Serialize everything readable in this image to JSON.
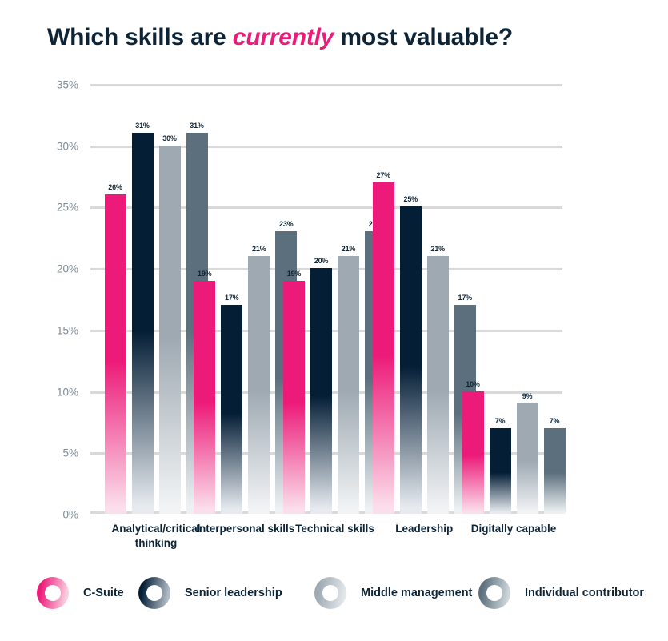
{
  "title": {
    "prefix": "Which skills are ",
    "highlight": "currently",
    "suffix": " most valuable?"
  },
  "colors": {
    "background": "#ffffff",
    "title_text": "#0d2436",
    "highlight_text": "#ec1a78",
    "gridline": "#d9d9d9",
    "tick_label": "#7e8b93",
    "data_label": "#0d2436",
    "category_label": "#0d2436"
  },
  "chart_data": {
    "type": "bar",
    "title": "Which skills are currently most valuable?",
    "xlabel": "",
    "ylabel": "",
    "ylim": [
      0,
      35
    ],
    "grid": true,
    "legend_position": "bottom",
    "y_tick_labels": [
      "35%",
      "30%",
      "25%",
      "20%",
      "15%",
      "10%",
      "5%",
      "0%"
    ],
    "data_label_suffix": "%",
    "categories": [
      "Analytical/critical thinking",
      "Interpersonal skills",
      "Technical skills",
      "Leadership",
      "Digitally capable"
    ],
    "series": [
      {
        "name": "C-Suite",
        "color": "#ec1a78",
        "fade_color": "#fbdeeb",
        "ring_light": "#f9cfe0",
        "values": [
          26,
          19,
          19,
          27,
          10
        ]
      },
      {
        "name": "Senior leadership",
        "color": "#041e36",
        "fade_color": "#e7ebf0",
        "ring_light": "#b2bcc7",
        "values": [
          31,
          17,
          20,
          25,
          7
        ]
      },
      {
        "name": "Middle management",
        "color": "#9ea9b2",
        "fade_color": "#f1f3f5",
        "ring_light": "#e2e7ea",
        "values": [
          30,
          21,
          21,
          21,
          9
        ]
      },
      {
        "name": "Individual contributor",
        "color": "#5c6f7d",
        "fade_color": "#edf1f3",
        "ring_light": "#cdd6db",
        "values": [
          31,
          23,
          23,
          17,
          7
        ]
      }
    ]
  }
}
